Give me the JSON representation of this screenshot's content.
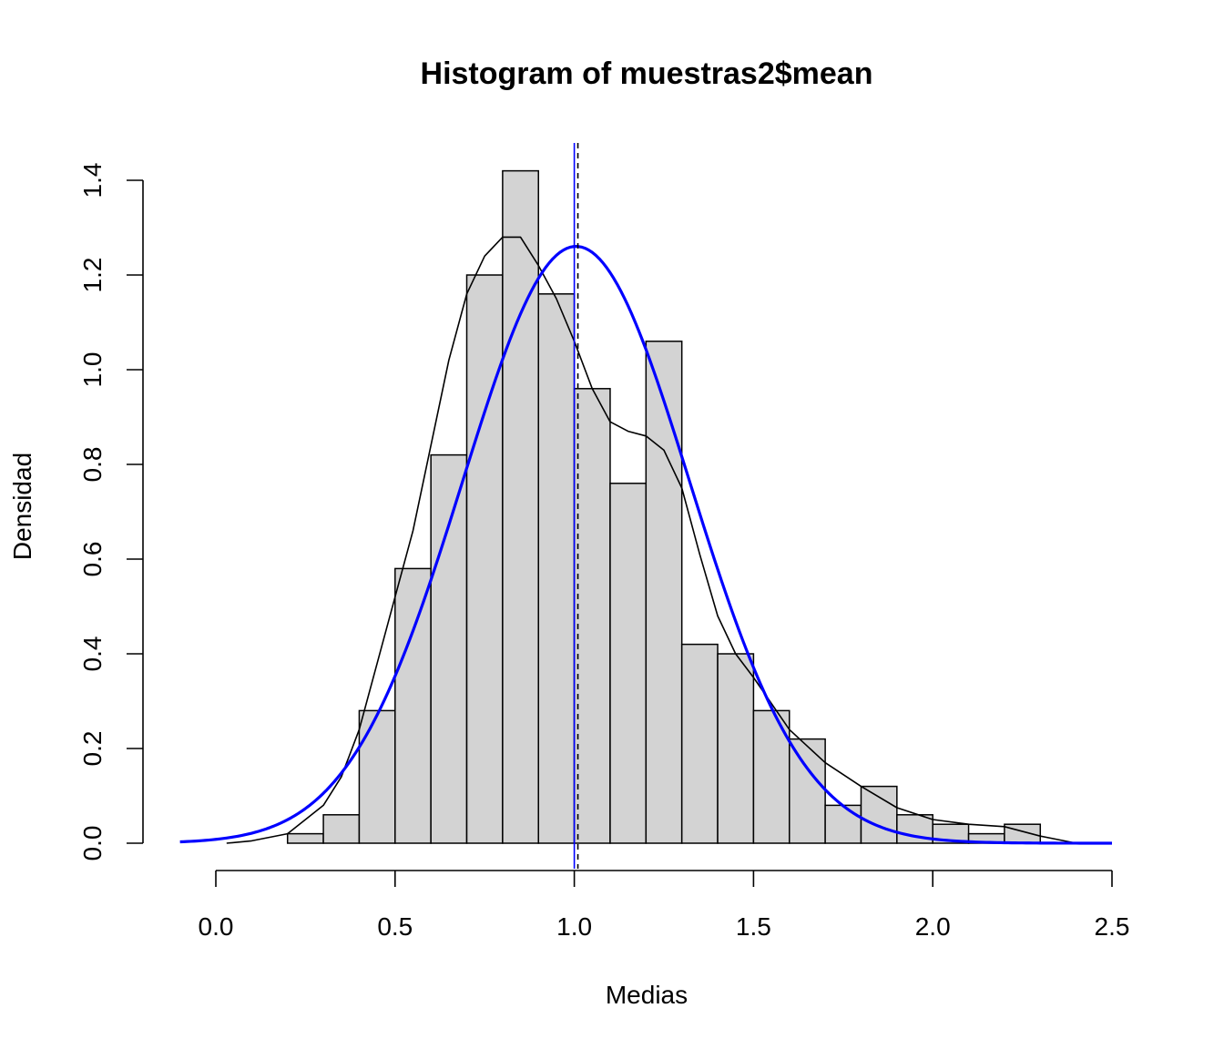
{
  "chart_data": {
    "type": "bar",
    "title": "Histogram of muestras2$mean",
    "xlabel": "Medias",
    "ylabel": "Densidad",
    "xlim": [
      0.0,
      2.5
    ],
    "ylim": [
      0.0,
      1.4
    ],
    "x_ticks": [
      "0.0",
      "0.5",
      "1.0",
      "1.5",
      "2.0",
      "2.5"
    ],
    "y_ticks": [
      "0.0",
      "0.2",
      "0.4",
      "0.6",
      "0.8",
      "1.0",
      "1.2",
      "1.4"
    ],
    "grid": false,
    "bins": [
      {
        "start": 0.2,
        "end": 0.3,
        "density": 0.02
      },
      {
        "start": 0.3,
        "end": 0.4,
        "density": 0.06
      },
      {
        "start": 0.4,
        "end": 0.5,
        "density": 0.28
      },
      {
        "start": 0.5,
        "end": 0.6,
        "density": 0.58
      },
      {
        "start": 0.6,
        "end": 0.7,
        "density": 0.82
      },
      {
        "start": 0.7,
        "end": 0.8,
        "density": 1.2
      },
      {
        "start": 0.8,
        "end": 0.9,
        "density": 1.42
      },
      {
        "start": 0.9,
        "end": 1.0,
        "density": 1.16
      },
      {
        "start": 1.0,
        "end": 1.1,
        "density": 0.96
      },
      {
        "start": 1.1,
        "end": 1.2,
        "density": 0.76
      },
      {
        "start": 1.2,
        "end": 1.3,
        "density": 1.06
      },
      {
        "start": 1.3,
        "end": 1.4,
        "density": 0.42
      },
      {
        "start": 1.4,
        "end": 1.5,
        "density": 0.4
      },
      {
        "start": 1.5,
        "end": 1.6,
        "density": 0.28
      },
      {
        "start": 1.6,
        "end": 1.7,
        "density": 0.22
      },
      {
        "start": 1.7,
        "end": 1.8,
        "density": 0.08
      },
      {
        "start": 1.8,
        "end": 1.9,
        "density": 0.12
      },
      {
        "start": 1.9,
        "end": 2.0,
        "density": 0.06
      },
      {
        "start": 2.0,
        "end": 2.1,
        "density": 0.04
      },
      {
        "start": 2.1,
        "end": 2.2,
        "density": 0.02
      },
      {
        "start": 2.2,
        "end": 2.3,
        "density": 0.04
      }
    ],
    "density_curve": {
      "color": "#000000",
      "x": [
        0.03,
        0.1,
        0.2,
        0.3,
        0.35,
        0.4,
        0.45,
        0.5,
        0.55,
        0.6,
        0.65,
        0.7,
        0.75,
        0.8,
        0.85,
        0.9,
        0.95,
        1.0,
        1.05,
        1.1,
        1.15,
        1.2,
        1.25,
        1.3,
        1.35,
        1.4,
        1.45,
        1.5,
        1.6,
        1.7,
        1.8,
        1.9,
        2.0,
        2.1,
        2.2,
        2.3,
        2.4
      ],
      "y": [
        0.0,
        0.005,
        0.02,
        0.08,
        0.14,
        0.24,
        0.38,
        0.52,
        0.66,
        0.84,
        1.02,
        1.16,
        1.24,
        1.28,
        1.28,
        1.22,
        1.15,
        1.06,
        0.96,
        0.89,
        0.87,
        0.86,
        0.83,
        0.75,
        0.61,
        0.48,
        0.4,
        0.35,
        0.24,
        0.17,
        0.12,
        0.075,
        0.05,
        0.04,
        0.035,
        0.015,
        0.0
      ]
    },
    "normal_curve": {
      "color": "#0000FF",
      "mean": 1.005,
      "sd": 0.3165,
      "xmin": -0.1,
      "xmax": 2.5
    },
    "vlines": [
      {
        "x": 1.0,
        "color": "#0000FF",
        "style": "solid"
      },
      {
        "x": 1.01,
        "color": "#000000",
        "style": "dashed"
      }
    ],
    "bar_fill": "#D3D3D3",
    "bar_stroke": "#000000"
  }
}
